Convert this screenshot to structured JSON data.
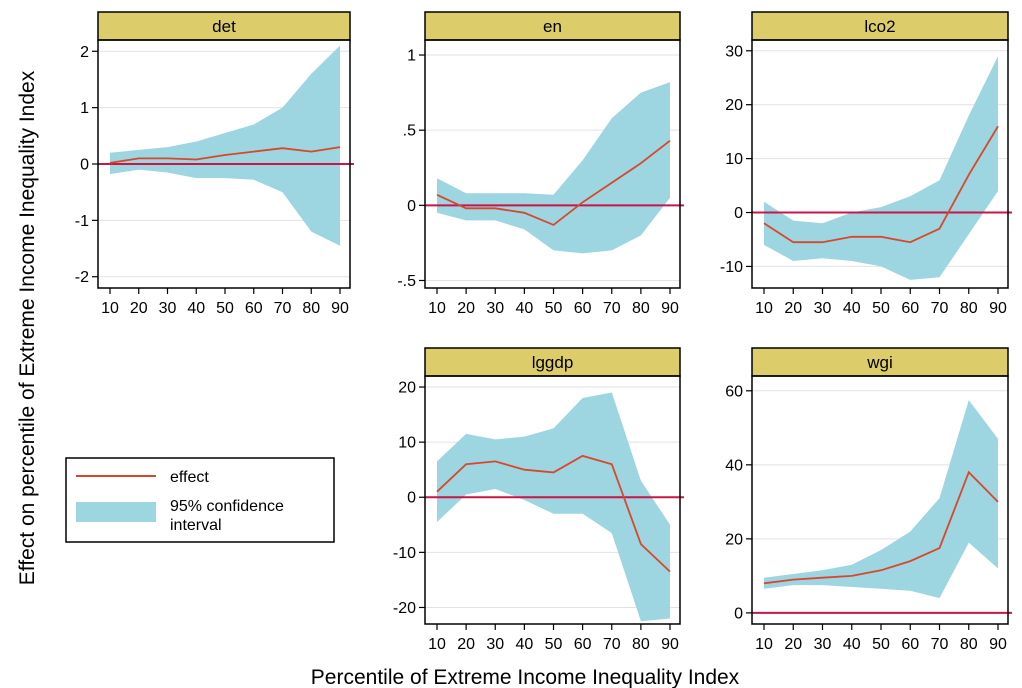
{
  "figure": {
    "ylabel": "Effect on percentile of Extreme Income Inequality Index",
    "xlabel": "Percentile of Extreme Income Inequality Index",
    "colors": {
      "effect": "#d9472b",
      "ci": "#9dd5e0",
      "zero_line": "#c8154a",
      "title_bar": "#dccd6a",
      "grid": "#e2e2e2"
    }
  },
  "legend": {
    "effect_label": "effect",
    "ci_label_line1": "95% confidence",
    "ci_label_line2": "interval"
  },
  "chart_data": [
    {
      "type": "area",
      "title": "det",
      "x": [
        10,
        20,
        30,
        40,
        50,
        60,
        70,
        80,
        90
      ],
      "xticks": [
        "10",
        "20",
        "30",
        "40",
        "50",
        "60",
        "70",
        "80",
        "90"
      ],
      "ylim": [
        -2.2,
        2.2
      ],
      "yticks": [
        2,
        1,
        0,
        -1,
        -2
      ],
      "ytick_labels": [
        "2",
        "1",
        "0",
        "-1",
        "-2"
      ],
      "series": [
        {
          "values": [
            0.02,
            0.1,
            0.1,
            0.08,
            0.16,
            0.22,
            0.28,
            0.22,
            0.3
          ]
        },
        {
          "role": "ci_upper",
          "values": [
            0.2,
            0.25,
            0.3,
            0.4,
            0.55,
            0.7,
            1.0,
            1.6,
            2.1
          ]
        },
        {
          "role": "ci_lower",
          "values": [
            -0.18,
            -0.1,
            -0.15,
            -0.25,
            -0.25,
            -0.28,
            -0.5,
            -1.2,
            -1.45
          ]
        }
      ],
      "zero_line": 0,
      "grid": true
    },
    {
      "type": "area",
      "title": "en",
      "x": [
        10,
        20,
        30,
        40,
        50,
        60,
        70,
        80,
        90
      ],
      "xticks": [
        "10",
        "20",
        "30",
        "40",
        "50",
        "60",
        "70",
        "80",
        "90"
      ],
      "ylim": [
        -0.55,
        1.1
      ],
      "yticks": [
        1,
        0.5,
        0,
        -0.5
      ],
      "ytick_labels": [
        "1",
        ".5",
        "0",
        "-.5"
      ],
      "series": [
        {
          "values": [
            0.07,
            -0.02,
            -0.02,
            -0.05,
            -0.13,
            0.02,
            0.15,
            0.28,
            0.43
          ]
        },
        {
          "role": "ci_upper",
          "values": [
            0.18,
            0.08,
            0.08,
            0.08,
            0.07,
            0.3,
            0.58,
            0.75,
            0.82
          ]
        },
        {
          "role": "ci_lower",
          "values": [
            -0.05,
            -0.1,
            -0.1,
            -0.16,
            -0.3,
            -0.32,
            -0.3,
            -0.2,
            0.05
          ]
        }
      ],
      "zero_line": 0,
      "grid": true
    },
    {
      "type": "area",
      "title": "lco2",
      "x": [
        10,
        20,
        30,
        40,
        50,
        60,
        70,
        80,
        90
      ],
      "xticks": [
        "10",
        "20",
        "30",
        "40",
        "50",
        "60",
        "70",
        "80",
        "90"
      ],
      "ylim": [
        -14,
        32
      ],
      "yticks": [
        30,
        20,
        10,
        0,
        -10
      ],
      "ytick_labels": [
        "30",
        "20",
        "10",
        "0",
        "-10"
      ],
      "series": [
        {
          "values": [
            -2,
            -5.5,
            -5.5,
            -4.5,
            -4.5,
            -5.5,
            -3,
            7,
            16
          ]
        },
        {
          "role": "ci_upper",
          "values": [
            2,
            -1.5,
            -2,
            0,
            1,
            3,
            6,
            18,
            29
          ]
        },
        {
          "role": "ci_lower",
          "values": [
            -6,
            -9,
            -8.5,
            -9,
            -10,
            -12.5,
            -12,
            -4,
            4
          ]
        }
      ],
      "zero_line": 0,
      "grid": true
    },
    {
      "type": "area",
      "title": "lggdp",
      "x": [
        10,
        20,
        30,
        40,
        50,
        60,
        70,
        80,
        90
      ],
      "xticks": [
        "10",
        "20",
        "30",
        "40",
        "50",
        "60",
        "70",
        "80",
        "90"
      ],
      "ylim": [
        -23,
        22
      ],
      "yticks": [
        20,
        10,
        0,
        -10,
        -20
      ],
      "ytick_labels": [
        "20",
        "10",
        "0",
        "-10",
        "-20"
      ],
      "series": [
        {
          "values": [
            1,
            6,
            6.5,
            5,
            4.5,
            7.5,
            6,
            -8.5,
            -13.5
          ]
        },
        {
          "role": "ci_upper",
          "values": [
            6.5,
            11.5,
            10.5,
            11,
            12.5,
            18,
            19,
            3,
            -5
          ]
        },
        {
          "role": "ci_lower",
          "values": [
            -4.5,
            0.5,
            1.5,
            -0.5,
            -3,
            -3,
            -6.5,
            -22.5,
            -22
          ]
        }
      ],
      "zero_line": 0,
      "grid": true
    },
    {
      "type": "area",
      "title": "wgi",
      "x": [
        10,
        20,
        30,
        40,
        50,
        60,
        70,
        80,
        90
      ],
      "xticks": [
        "10",
        "20",
        "30",
        "40",
        "50",
        "60",
        "70",
        "80",
        "90"
      ],
      "ylim": [
        -3,
        64
      ],
      "yticks": [
        60,
        40,
        20,
        0
      ],
      "ytick_labels": [
        "60",
        "40",
        "20",
        "0"
      ],
      "series": [
        {
          "values": [
            8,
            9,
            9.5,
            10,
            11.5,
            14,
            17.5,
            38,
            30
          ]
        },
        {
          "role": "ci_upper",
          "values": [
            9.5,
            10.5,
            11.5,
            13,
            17,
            22,
            31,
            57.5,
            47
          ]
        },
        {
          "role": "ci_lower",
          "values": [
            6.5,
            7.5,
            7.5,
            7,
            6.5,
            6,
            4,
            19,
            12
          ]
        }
      ],
      "zero_line": 0,
      "grid": true
    }
  ]
}
